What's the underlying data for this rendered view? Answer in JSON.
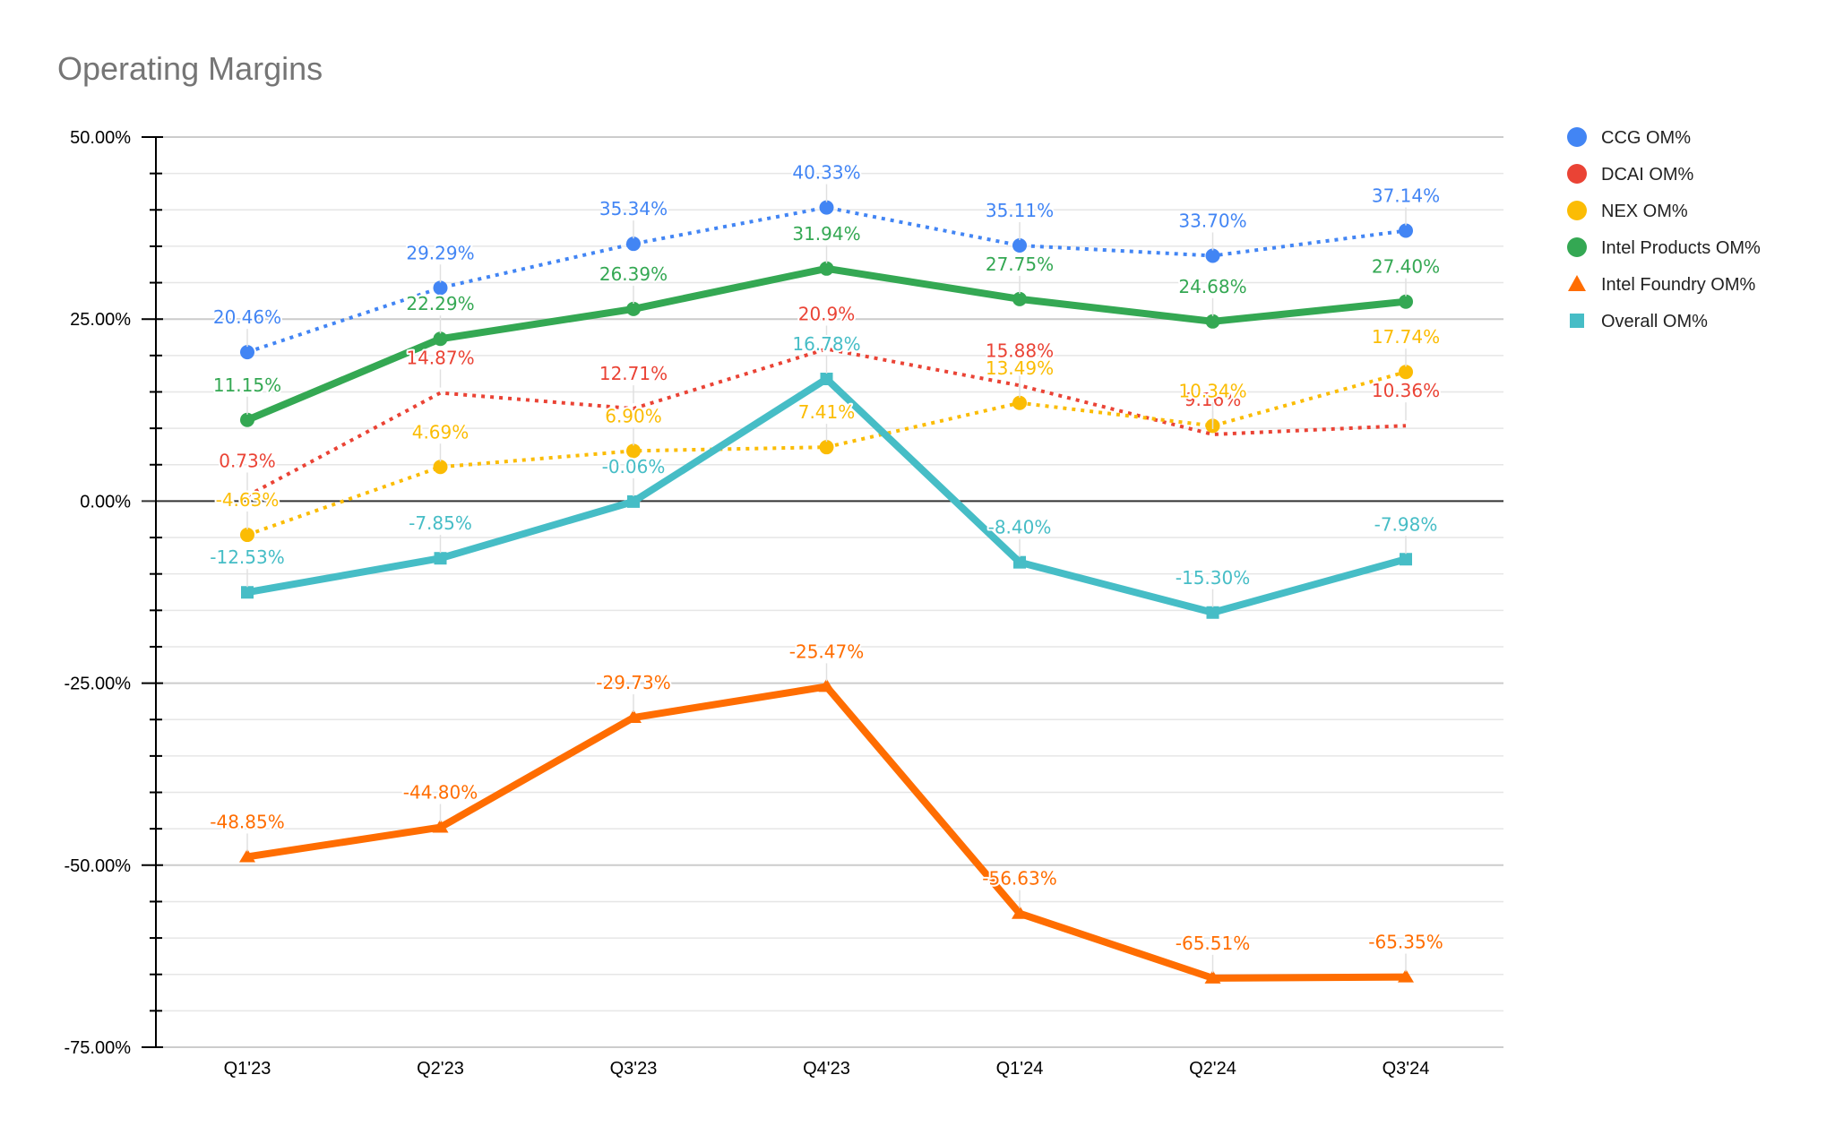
{
  "chart_data": {
    "type": "line",
    "title": "Operating Margins",
    "xlabel": "",
    "ylabel": "",
    "categories": [
      "Q1'23",
      "Q2'23",
      "Q3'23",
      "Q4'23",
      "Q1'24",
      "Q2'24",
      "Q3'24"
    ],
    "ylim": [
      -75,
      50
    ],
    "y_major_ticks": [
      50,
      25,
      0,
      -25,
      -50,
      -75
    ],
    "y_tick_labels": [
      "50.00%",
      "25.00%",
      "0.00%",
      "-25.00%",
      "-50.00%",
      "-75.00%"
    ],
    "y_minor_step": 5,
    "grid": true,
    "legend_position": "right",
    "series": [
      {
        "name": "CCG OM%",
        "color": "#4285F4",
        "style": "dotted",
        "marker": "circle",
        "values": [
          20.46,
          29.29,
          35.34,
          40.33,
          35.11,
          33.7,
          37.14
        ],
        "labels": [
          "20.46%",
          "29.29%",
          "35.34%",
          "40.33%",
          "35.11%",
          "33.70%",
          "37.14%"
        ]
      },
      {
        "name": "DCAI OM%",
        "color": "#EA4335",
        "style": "dotted",
        "marker": "none",
        "values": [
          0.73,
          14.87,
          12.71,
          20.9,
          15.88,
          9.16,
          10.36
        ],
        "labels": [
          "0.73%",
          "14.87%",
          "12.71%",
          "20.9%",
          "15.88%",
          "9.16%",
          "10.36%"
        ]
      },
      {
        "name": "NEX OM%",
        "color": "#FBBC04",
        "style": "dotted",
        "marker": "circle",
        "values": [
          -4.63,
          4.69,
          6.9,
          7.41,
          13.49,
          10.34,
          17.74
        ],
        "labels": [
          "-4.63%",
          "4.69%",
          "6.90%",
          "7.41%",
          "13.49%",
          "10.34%",
          "17.74%"
        ]
      },
      {
        "name": "Intel Products OM%",
        "color": "#34A853",
        "style": "solid",
        "marker": "circle",
        "values": [
          11.15,
          22.29,
          26.39,
          31.94,
          27.75,
          24.68,
          27.4
        ],
        "labels": [
          "11.15%",
          "22.29%",
          "26.39%",
          "31.94%",
          "27.75%",
          "24.68%",
          "27.40%"
        ]
      },
      {
        "name": "Intel Foundry OM%",
        "color": "#FF6D01",
        "style": "solid",
        "marker": "triangle",
        "values": [
          -48.85,
          -44.8,
          -29.73,
          -25.47,
          -56.63,
          -65.51,
          -65.35
        ],
        "labels": [
          "-48.85%",
          "-44.80%",
          "-29.73%",
          "-25.47%",
          "-56.63%",
          "-65.51%",
          "-65.35%"
        ]
      },
      {
        "name": "Overall OM%",
        "color": "#46BDC6",
        "style": "solid",
        "marker": "square",
        "values": [
          -12.53,
          -7.85,
          -0.06,
          16.78,
          -8.4,
          -15.3,
          -7.98
        ],
        "labels": [
          "-12.53%",
          "-7.85%",
          "-0.06%",
          "16.78%",
          "-8.40%",
          "-15.30%",
          "-7.98%"
        ]
      }
    ]
  }
}
